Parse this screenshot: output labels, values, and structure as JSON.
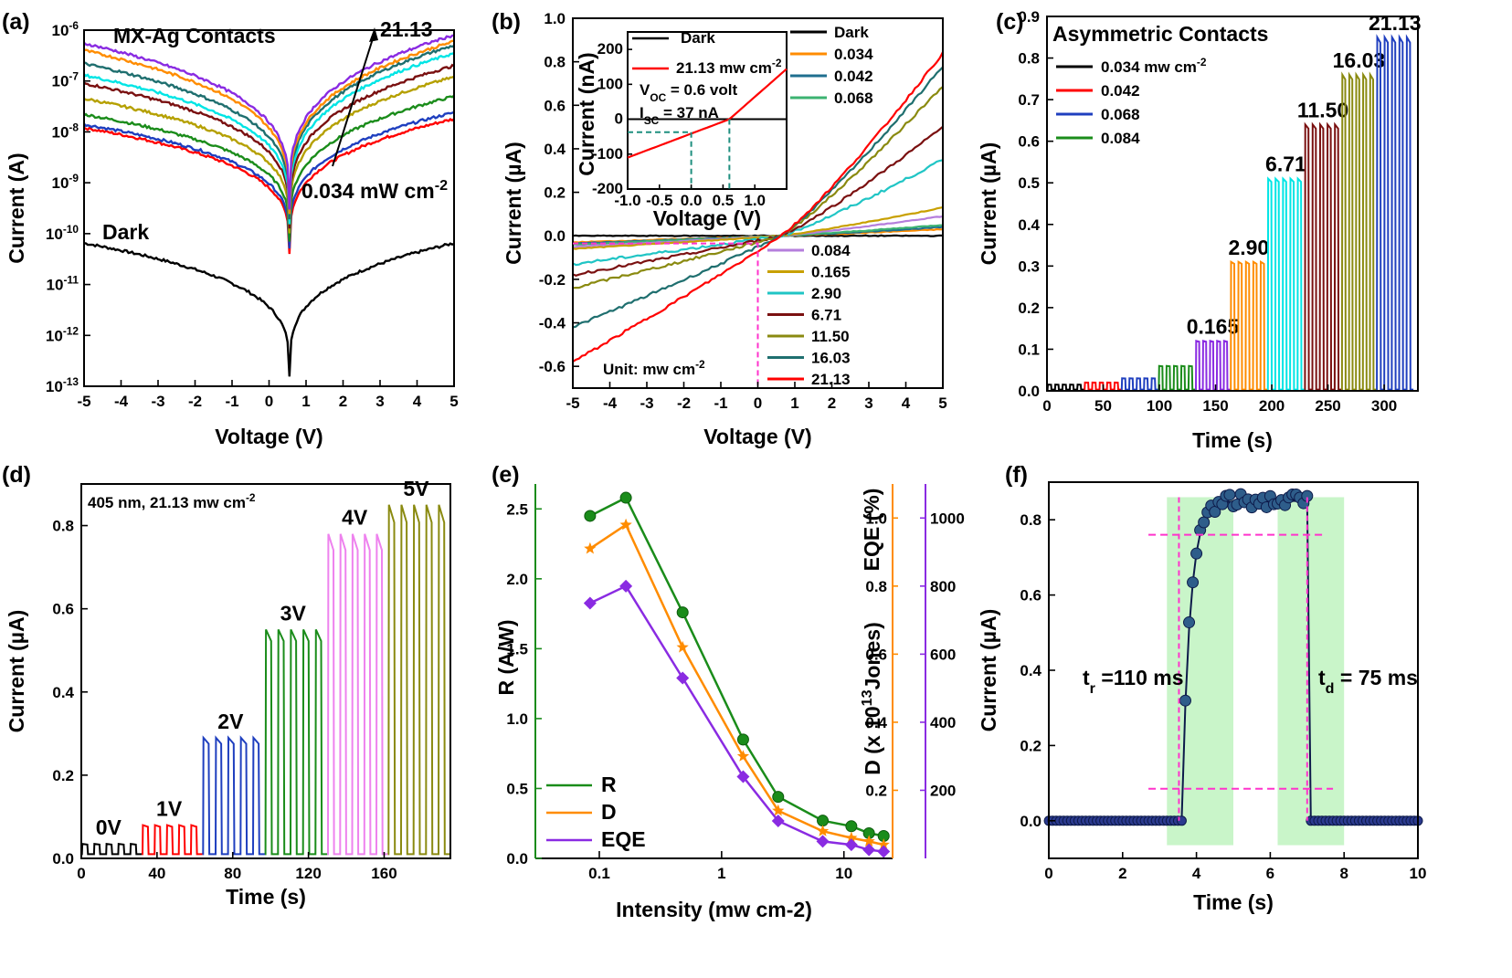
{
  "chart_data": [
    {
      "panel": "(a)",
      "type": "line",
      "title": "",
      "xlabel": "Voltage (V)",
      "ylabel": "Current (A)",
      "yscale": "log",
      "xlim": [
        -5,
        5
      ],
      "ylim": [
        1e-13,
        1e-06
      ],
      "xticks": [
        "-5",
        "-4",
        "-3",
        "-2",
        "-1",
        "0",
        "1",
        "2",
        "3",
        "4",
        "5"
      ],
      "yticks": [
        "10-13",
        "10-12",
        "10-11",
        "10-10",
        "10-9",
        "10-8",
        "10-7",
        "10-6"
      ],
      "annotations": {
        "contacts": "MX-Ag Contacts",
        "arrow_top": "21.13",
        "arrow_bottom": "0.034 mW cm-2",
        "dark": "Dark"
      },
      "series": [
        {
          "color": "#000000",
          "left": 6.5e-11,
          "right": 6.5e-11,
          "min": 1.5e-13
        },
        {
          "color": "#ff0000",
          "left": 1.2e-08,
          "right": 1.8e-08,
          "min": 4e-11
        },
        {
          "color": "#1f3fbf",
          "left": 1.4e-08,
          "right": 2.4e-08,
          "min": 5e-11
        },
        {
          "color": "#1a8c1a",
          "left": 2.2e-08,
          "right": 5e-08,
          "min": 7e-11
        },
        {
          "color": "#b5a000",
          "left": 4.5e-08,
          "right": 1.2e-07,
          "min": 1e-10
        },
        {
          "color": "#7a1010",
          "left": 9e-08,
          "right": 2e-07,
          "min": 1.3e-10
        },
        {
          "color": "#00e5e5",
          "left": 1.3e-07,
          "right": 3.5e-07,
          "min": 1.6e-10
        },
        {
          "color": "#1f6f6f",
          "left": 2.2e-07,
          "right": 5e-07,
          "min": 2e-10
        },
        {
          "color": "#ff8c00",
          "left": 4e-07,
          "right": 6e-07,
          "min": 2.5e-10
        },
        {
          "color": "#8a2be2",
          "left": 5.5e-07,
          "right": 8e-07,
          "min": 3e-10
        }
      ]
    },
    {
      "panel": "(b)",
      "type": "line",
      "xlabel": "Voltage (V)",
      "ylabel": "Current (µA)",
      "xlim": [
        -5,
        5
      ],
      "ylim": [
        -0.7,
        1.0
      ],
      "xticks": [
        "-5",
        "-4",
        "-3",
        "-2",
        "-1",
        "0",
        "1",
        "2",
        "3",
        "4",
        "5"
      ],
      "yticks": [
        "-0.6",
        "-0.4",
        "-0.2",
        "0.0",
        "0.2",
        "0.4",
        "0.6",
        "0.8",
        "1.0"
      ],
      "unit_note": "Unit: mw cm-2",
      "series": [
        {
          "name": "Dark",
          "color": "#000000",
          "at_minus5": 0.0,
          "at_plus5": 0.0
        },
        {
          "name": "0.034",
          "color": "#ff8c00",
          "at_minus5": -0.03,
          "at_plus5": 0.03
        },
        {
          "name": "0.042",
          "color": "#1f6f8f",
          "at_minus5": -0.035,
          "at_plus5": 0.04
        },
        {
          "name": "0.068",
          "color": "#3cb371",
          "at_minus5": -0.04,
          "at_plus5": 0.05
        },
        {
          "name": "0.084",
          "color": "#b57edc",
          "at_minus5": -0.05,
          "at_plus5": 0.09
        },
        {
          "name": "0.165",
          "color": "#c8a000",
          "at_minus5": -0.06,
          "at_plus5": 0.13
        },
        {
          "name": "2.90",
          "color": "#20c5c5",
          "at_minus5": -0.13,
          "at_plus5": 0.35
        },
        {
          "name": "6.71",
          "color": "#7a1010",
          "at_minus5": -0.18,
          "at_plus5": 0.5
        },
        {
          "name": "11.50",
          "color": "#8a8a10",
          "at_minus5": -0.24,
          "at_plus5": 0.69
        },
        {
          "name": "16.03",
          "color": "#1f6f6f",
          "at_minus5": -0.42,
          "at_plus5": 0.78
        },
        {
          "name": "21.13",
          "color": "#ff0000",
          "at_minus5": -0.58,
          "at_plus5": 0.84
        }
      ],
      "inset": {
        "xlabel": "Voltage (V)",
        "ylabel": "Current (nA)",
        "xlim": [
          -1.0,
          1.5
        ],
        "ylim": [
          -200,
          250
        ],
        "xticks": [
          "-1.0",
          "-0.5",
          "0.0",
          "0.5",
          "1.0"
        ],
        "yticks": [
          "-200",
          "-100",
          "0",
          "100",
          "200"
        ],
        "legend": [
          "Dark",
          "21.13 mw cm-2"
        ],
        "voc": "VOC = 0.6 volt",
        "isc": "ISC = 37 nA"
      }
    },
    {
      "panel": "(c)",
      "type": "line",
      "xlabel": "Time (s)",
      "ylabel": "Current (µA)",
      "xlim": [
        0,
        330
      ],
      "ylim": [
        0,
        0.9
      ],
      "xticks": [
        "0",
        "50",
        "100",
        "150",
        "200",
        "250",
        "300"
      ],
      "yticks": [
        "0.0",
        "0.1",
        "0.2",
        "0.3",
        "0.4",
        "0.5",
        "0.6",
        "0.7",
        "0.8",
        "0.9"
      ],
      "legend_title": "Asymmetric Contacts",
      "legend": [
        "0.034 mw cm-2",
        "0.042",
        "0.068",
        "0.084"
      ],
      "segments": [
        {
          "label": "",
          "color": "#000000",
          "start": 0,
          "end": 33,
          "level": 0.015
        },
        {
          "label": "",
          "color": "#ff0000",
          "start": 33,
          "end": 66,
          "level": 0.02
        },
        {
          "label": "",
          "color": "#1f3fbf",
          "start": 66,
          "end": 99,
          "level": 0.03
        },
        {
          "label": "",
          "color": "#1a8c1a",
          "start": 99,
          "end": 132,
          "level": 0.06
        },
        {
          "label": "0.165",
          "color": "#8a2be2",
          "start": 132,
          "end": 163,
          "level": 0.12
        },
        {
          "label": "2.90",
          "color": "#ff8c00",
          "start": 163,
          "end": 196,
          "level": 0.31
        },
        {
          "label": "6.71",
          "color": "#00e5e5",
          "start": 196,
          "end": 229,
          "level": 0.51
        },
        {
          "label": "11.50",
          "color": "#7a1010",
          "start": 229,
          "end": 262,
          "level": 0.64
        },
        {
          "label": "16.03",
          "color": "#8a8a10",
          "start": 262,
          "end": 293,
          "level": 0.76
        },
        {
          "label": "21.13",
          "color": "#1f3fbf",
          "start": 293,
          "end": 326,
          "level": 0.85
        }
      ]
    },
    {
      "panel": "(d)",
      "type": "line",
      "xlabel": "Time (s)",
      "ylabel": "Current (µA)",
      "xlim": [
        0,
        195
      ],
      "ylim": [
        0,
        0.9
      ],
      "xticks": [
        "0",
        "40",
        "80",
        "120",
        "160"
      ],
      "yticks": [
        "0.0",
        "0.2",
        "0.4",
        "0.6",
        "0.8"
      ],
      "condition": "405 nm, 21.13 mw cm-2",
      "segments": [
        {
          "label": "0V",
          "color": "#000000",
          "start": 0,
          "end": 32,
          "level": 0.035
        },
        {
          "label": "1V",
          "color": "#ff0000",
          "start": 32,
          "end": 64,
          "level": 0.08
        },
        {
          "label": "2V",
          "color": "#1f3fbf",
          "start": 64,
          "end": 97,
          "level": 0.29
        },
        {
          "label": "3V",
          "color": "#1a8c1a",
          "start": 97,
          "end": 130,
          "level": 0.55
        },
        {
          "label": "4V",
          "color": "#ee82ee",
          "start": 130,
          "end": 162,
          "level": 0.78
        },
        {
          "label": "5V",
          "color": "#8a8a10",
          "start": 162,
          "end": 195,
          "level": 0.85
        }
      ]
    },
    {
      "panel": "(e)",
      "type": "line",
      "xlabel": "Intensity (mw cm-2)",
      "xscale": "log",
      "xlim": [
        0.03,
        25
      ],
      "xticks": [
        "0.1",
        "1",
        "10"
      ],
      "axes": {
        "R": {
          "label": "R (A/W)",
          "ylim": [
            0,
            2.6
          ],
          "yticks": [
            "0.0",
            "0.5",
            "1.0",
            "1.5",
            "2.0",
            "2.5"
          ],
          "color": "#1a8c1a"
        },
        "D": {
          "label": "D (x 1013Jones)",
          "ylim": [
            0,
            1.1
          ],
          "yticks": [
            "0.2",
            "0.4",
            "0.6",
            "0.8",
            "1.0"
          ],
          "color": "#ff8c00"
        },
        "EQE": {
          "label": "EQE (%)",
          "ylim": [
            0,
            1100
          ],
          "yticks": [
            "200",
            "400",
            "600",
            "800",
            "1000"
          ],
          "color": "#8a2be2"
        }
      },
      "x": [
        0.084,
        0.165,
        0.48,
        1.5,
        2.9,
        6.71,
        11.5,
        16.03,
        21.13
      ],
      "series": [
        {
          "name": "R",
          "axis": "R",
          "color": "#1a8c1a",
          "values": [
            2.45,
            2.58,
            1.76,
            0.85,
            0.44,
            0.27,
            0.23,
            0.18,
            0.16
          ]
        },
        {
          "name": "D",
          "axis": "D",
          "color": "#ff8c00",
          "values": [
            0.91,
            0.98,
            0.62,
            0.3,
            0.14,
            0.08,
            0.06,
            0.05,
            0.04
          ]
        },
        {
          "name": "EQE",
          "axis": "EQE",
          "color": "#8a2be2",
          "values": [
            750,
            800,
            530,
            240,
            110,
            50,
            40,
            25,
            20
          ]
        }
      ],
      "legend": [
        "R",
        "D",
        "EQE"
      ]
    },
    {
      "panel": "(f)",
      "type": "scatter",
      "xlabel": "Time (s)",
      "ylabel": "Current (µA)",
      "xlim": [
        0,
        10
      ],
      "ylim": [
        -0.1,
        0.9
      ],
      "xticks": [
        "0",
        "2",
        "4",
        "6",
        "8",
        "10"
      ],
      "yticks": [
        "0.0",
        "0.2",
        "0.4",
        "0.6",
        "0.8"
      ],
      "rise": "tr =110 ms",
      "decay": "td = 75 ms",
      "on_start": 3.6,
      "off_start": 7.0,
      "high": 0.85,
      "shaded": [
        [
          3.2,
          5.0
        ],
        [
          6.2,
          8.0
        ]
      ]
    }
  ]
}
